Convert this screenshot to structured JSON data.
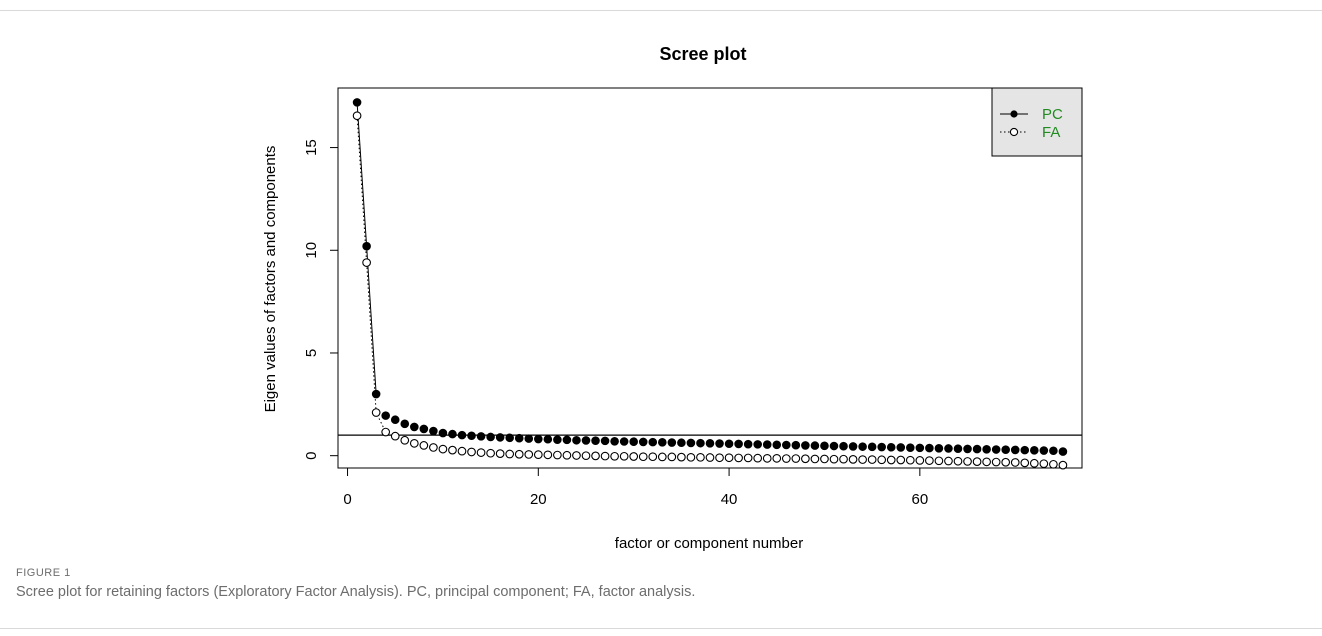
{
  "figure": {
    "label": "FIGURE 1",
    "caption": "Scree plot for retaining factors (Exploratory Factor Analysis). PC, principal component; FA, factor analysis."
  },
  "chart_data": {
    "type": "scatter",
    "title": "Scree plot",
    "xlabel": "factor or component number",
    "ylabel": "Eigen values of factors and components",
    "xlim": [
      -1,
      77
    ],
    "ylim": [
      -0.6,
      17.9
    ],
    "x_ticks": [
      0,
      20,
      40,
      60
    ],
    "y_ticks": [
      0,
      5,
      10,
      15
    ],
    "reference_line": {
      "y": 1
    },
    "legend": {
      "position": "top-right",
      "labels": [
        "PC",
        "FA"
      ],
      "text_color": "#228b22",
      "background": "#e5e5e5"
    },
    "grid": false,
    "series": [
      {
        "name": "PC",
        "marker": "filled-circle",
        "line_style": "solid",
        "line_points": 3,
        "x": [
          1,
          2,
          3,
          4,
          5,
          6,
          7,
          8,
          9,
          10,
          11,
          12,
          13,
          14,
          15,
          16,
          17,
          18,
          19,
          20,
          21,
          22,
          23,
          24,
          25,
          26,
          27,
          28,
          29,
          30,
          31,
          32,
          33,
          34,
          35,
          36,
          37,
          38,
          39,
          40,
          41,
          42,
          43,
          44,
          45,
          46,
          47,
          48,
          49,
          50,
          51,
          52,
          53,
          54,
          55,
          56,
          57,
          58,
          59,
          60,
          61,
          62,
          63,
          64,
          65,
          66,
          67,
          68,
          69,
          70,
          71,
          72,
          73,
          74,
          75
        ],
        "values": [
          17.2,
          10.2,
          3.0,
          1.95,
          1.75,
          1.55,
          1.4,
          1.3,
          1.2,
          1.1,
          1.05,
          1.0,
          0.97,
          0.94,
          0.91,
          0.89,
          0.87,
          0.85,
          0.83,
          0.81,
          0.8,
          0.78,
          0.77,
          0.75,
          0.74,
          0.73,
          0.72,
          0.7,
          0.69,
          0.68,
          0.67,
          0.66,
          0.65,
          0.64,
          0.63,
          0.62,
          0.61,
          0.6,
          0.59,
          0.58,
          0.57,
          0.56,
          0.55,
          0.54,
          0.53,
          0.52,
          0.51,
          0.5,
          0.49,
          0.48,
          0.47,
          0.46,
          0.45,
          0.44,
          0.43,
          0.42,
          0.41,
          0.4,
          0.39,
          0.38,
          0.37,
          0.36,
          0.35,
          0.34,
          0.33,
          0.32,
          0.31,
          0.3,
          0.29,
          0.28,
          0.27,
          0.26,
          0.25,
          0.24,
          0.2
        ]
      },
      {
        "name": "FA",
        "marker": "open-circle",
        "line_style": "dotted",
        "line_points": 4,
        "x": [
          1,
          2,
          3,
          4,
          5,
          6,
          7,
          8,
          9,
          10,
          11,
          12,
          13,
          14,
          15,
          16,
          17,
          18,
          19,
          20,
          21,
          22,
          23,
          24,
          25,
          26,
          27,
          28,
          29,
          30,
          31,
          32,
          33,
          34,
          35,
          36,
          37,
          38,
          39,
          40,
          41,
          42,
          43,
          44,
          45,
          46,
          47,
          48,
          49,
          50,
          51,
          52,
          53,
          54,
          55,
          56,
          57,
          58,
          59,
          60,
          61,
          62,
          63,
          64,
          65,
          66,
          67,
          68,
          69,
          70,
          71,
          72,
          73,
          74,
          75
        ],
        "values": [
          16.55,
          9.4,
          2.1,
          1.15,
          0.95,
          0.75,
          0.6,
          0.5,
          0.4,
          0.32,
          0.27,
          0.22,
          0.18,
          0.15,
          0.12,
          0.1,
          0.08,
          0.07,
          0.06,
          0.05,
          0.04,
          0.03,
          0.02,
          0.01,
          0.0,
          -0.01,
          -0.02,
          -0.03,
          -0.03,
          -0.04,
          -0.05,
          -0.05,
          -0.06,
          -0.06,
          -0.07,
          -0.08,
          -0.08,
          -0.09,
          -0.1,
          -0.1,
          -0.11,
          -0.11,
          -0.12,
          -0.13,
          -0.13,
          -0.14,
          -0.14,
          -0.15,
          -0.16,
          -0.16,
          -0.17,
          -0.17,
          -0.18,
          -0.19,
          -0.19,
          -0.2,
          -0.21,
          -0.21,
          -0.22,
          -0.23,
          -0.24,
          -0.25,
          -0.26,
          -0.27,
          -0.28,
          -0.29,
          -0.3,
          -0.31,
          -0.32,
          -0.33,
          -0.35,
          -0.37,
          -0.39,
          -0.42,
          -0.46
        ]
      }
    ]
  }
}
